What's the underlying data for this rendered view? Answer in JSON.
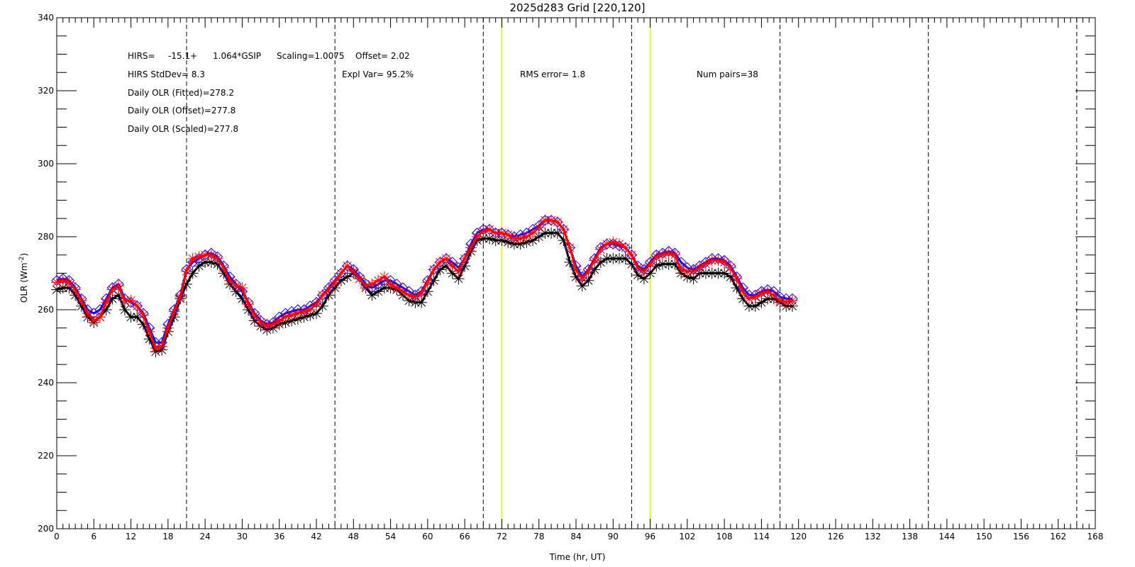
{
  "chart_data": {
    "type": "line",
    "title": "2025d283 Grid [220,120]",
    "xlabel": "Time (hr, UT)",
    "ylabel": "OLR (Wm",
    "ylabel_sup": "-2",
    "ylabel_close": ")",
    "xlim": [
      0,
      168
    ],
    "ylim": [
      200,
      340
    ],
    "x_ticks": [
      0,
      6,
      12,
      18,
      24,
      30,
      36,
      42,
      48,
      54,
      60,
      66,
      72,
      78,
      84,
      90,
      96,
      102,
      108,
      114,
      120,
      126,
      132,
      138,
      144,
      150,
      156,
      162,
      168
    ],
    "x_minor_step": 1,
    "y_ticks": [
      200,
      220,
      240,
      260,
      280,
      300,
      320,
      340
    ],
    "y_minor_step": 5,
    "grid": false,
    "dashed_vlines": [
      21,
      45,
      69,
      93,
      117,
      141,
      165
    ],
    "highlight_vlines": [
      72,
      96
    ],
    "highlight_color": "#c8ff00",
    "annotations": {
      "eq_prefix": "HIRS=",
      "eq_intercept": "-15.1+",
      "eq_slope": "1.064*GSIP",
      "scaling": "Scaling=1.0075",
      "offset": "Offset=  2.02",
      "stddev": "HIRS StdDev=  8.3",
      "expl_var": "Expl Var= 95.2%",
      "rms": "RMS error=  1.8",
      "num_pairs": "Num pairs=38",
      "daily_fitted": "Daily OLR (Fitted)=278.2",
      "daily_offset": "Daily OLR (Offset)=277.8",
      "daily_scaled": "Daily OLR (Scaled)=277.8"
    },
    "x": [
      0,
      1,
      2,
      3,
      4,
      5,
      6,
      7,
      8,
      9,
      10,
      11,
      12,
      13,
      14,
      15,
      16,
      17,
      18,
      19,
      20,
      21,
      22,
      23,
      24,
      25,
      26,
      27,
      28,
      29,
      30,
      31,
      32,
      33,
      34,
      35,
      36,
      37,
      38,
      39,
      40,
      41,
      42,
      43,
      44,
      45,
      46,
      47,
      48,
      49,
      50,
      51,
      52,
      53,
      54,
      55,
      56,
      57,
      58,
      59,
      60,
      61,
      62,
      63,
      64,
      65,
      66,
      67,
      68,
      69,
      70,
      71,
      72,
      73,
      74,
      75,
      76,
      77,
      78,
      79,
      80,
      81,
      82,
      83,
      84,
      85,
      86,
      87,
      88,
      89,
      90,
      91,
      92,
      93,
      94,
      95,
      96,
      97,
      98,
      99,
      100,
      101,
      102,
      103,
      104,
      105,
      106,
      107,
      108,
      109,
      110,
      111,
      112,
      113,
      114,
      115,
      116,
      117,
      118,
      119
    ],
    "series": [
      {
        "style": "black-line-asterisk",
        "color": "#000000",
        "values": [
          265.5,
          266,
          266,
          264,
          261,
          258,
          256.5,
          258,
          260,
          263,
          264,
          260,
          258,
          258,
          256,
          252,
          248.5,
          249,
          254,
          258,
          263,
          267,
          270,
          272,
          273,
          273,
          272.5,
          270,
          267,
          265,
          263,
          260,
          257,
          255.5,
          254.5,
          255,
          256,
          256.5,
          257,
          257.5,
          258,
          258.5,
          259,
          261,
          264,
          266,
          268,
          269,
          270,
          268.5,
          266,
          264,
          265,
          266,
          266,
          265.5,
          264,
          262.5,
          262,
          262,
          265,
          268,
          271,
          272,
          270,
          268.5,
          272,
          276,
          279,
          279.5,
          279.5,
          279,
          279,
          278.5,
          278,
          278,
          278.5,
          279,
          280,
          281,
          281,
          281,
          279,
          273,
          269,
          266.5,
          268,
          271,
          273,
          274,
          274,
          274,
          274,
          272.5,
          269.5,
          268.5,
          270,
          272,
          272.5,
          272.5,
          272.5,
          270,
          269,
          268.5,
          270,
          270,
          270,
          270,
          270,
          269,
          266,
          263,
          261,
          261,
          262,
          263,
          263,
          262,
          261,
          261
        ]
      },
      {
        "style": "blue-line-diamond",
        "color": "#0000ff",
        "values": [
          268,
          268.5,
          268,
          266,
          263,
          260,
          259,
          260,
          263,
          266,
          267,
          263,
          262,
          261,
          259,
          255,
          251,
          251,
          256,
          260,
          264,
          271,
          273,
          274,
          275,
          275.5,
          274.5,
          272,
          269,
          267,
          265,
          262,
          259,
          257,
          256,
          256.5,
          258,
          259,
          259.5,
          260,
          260,
          261,
          262,
          264,
          266,
          268,
          270,
          272,
          271,
          269,
          267,
          266,
          267,
          268,
          268,
          267,
          266,
          265,
          264,
          265,
          268,
          271,
          273,
          274,
          273,
          271.5,
          274,
          278,
          281,
          282,
          282,
          281,
          281,
          280.5,
          280,
          280.5,
          281,
          282,
          283,
          284.5,
          284.5,
          284,
          282,
          277,
          272,
          269,
          271,
          274,
          277,
          278,
          278,
          277.5,
          277,
          275,
          272,
          271,
          273,
          275,
          275.5,
          276,
          275.5,
          273,
          271.5,
          271,
          272,
          273,
          274,
          274,
          273.5,
          272,
          269,
          266,
          264,
          264,
          265,
          265.5,
          265,
          263.5,
          263,
          263
        ]
      },
      {
        "style": "red-line-asterisk",
        "color": "#ff0000",
        "values": [
          267.5,
          268,
          267.5,
          265.5,
          262.5,
          259,
          257,
          258,
          262,
          265.5,
          266.5,
          262.5,
          262.5,
          261,
          258.5,
          254,
          249.5,
          250,
          255,
          259.5,
          263.5,
          270.5,
          274,
          274.5,
          275,
          275,
          274,
          271.5,
          268,
          266.5,
          266,
          261.5,
          258.5,
          256.5,
          255.5,
          256,
          257,
          258,
          258.5,
          259,
          259.5,
          260,
          261.5,
          264,
          265.5,
          267.5,
          270,
          272,
          270.5,
          268.5,
          266.5,
          267,
          268,
          269,
          267,
          266,
          265,
          264,
          263.5,
          264.5,
          267.5,
          271,
          273,
          274,
          272,
          270.5,
          274,
          277,
          280,
          281.5,
          282,
          281,
          281,
          280.5,
          279.5,
          279.5,
          280,
          281,
          282.5,
          284.5,
          284.5,
          284,
          282,
          277,
          271,
          268.5,
          270.5,
          273.5,
          276.5,
          278,
          278.5,
          278,
          277,
          275,
          271.5,
          270.5,
          272.5,
          274.5,
          275,
          275.5,
          275,
          271,
          270.5,
          270.5,
          271.5,
          272.5,
          273.5,
          273.5,
          273,
          271.5,
          268.5,
          265,
          263,
          263.5,
          264.5,
          265,
          264,
          262.5,
          262,
          262.5
        ]
      }
    ]
  }
}
